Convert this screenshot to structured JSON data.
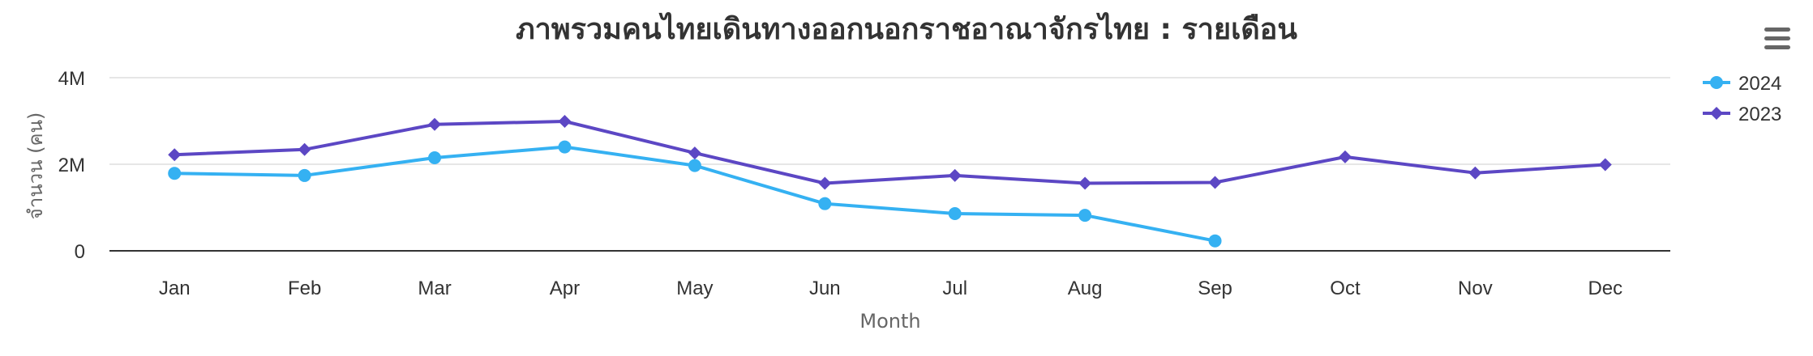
{
  "chart_data": {
    "type": "line",
    "title": "ภาพรวมคนไทยเดินทางออกนอกราชอาณาจักรไทย : รายเดือน",
    "xlabel": "Month",
    "ylabel": "จำนวน (คน)",
    "categories": [
      "Jan",
      "Feb",
      "Mar",
      "Apr",
      "May",
      "Jun",
      "Jul",
      "Aug",
      "Sep",
      "Oct",
      "Nov",
      "Dec"
    ],
    "ylim": [
      0,
      4000000
    ],
    "yticks": [
      0,
      2000000,
      4000000
    ],
    "ytick_labels": [
      "0",
      "2M",
      "4M"
    ],
    "grid": true,
    "legend_position": "top-right",
    "series": [
      {
        "name": "2024",
        "color": "#35b1f2",
        "marker": "circle",
        "values": [
          1790000,
          1740000,
          2150000,
          2400000,
          1970000,
          1090000,
          860000,
          820000,
          230000,
          null,
          null,
          null
        ]
      },
      {
        "name": "2023",
        "color": "#5c47c4",
        "marker": "diamond",
        "values": [
          2220000,
          2340000,
          2920000,
          2990000,
          2260000,
          1560000,
          1740000,
          1560000,
          1580000,
          2170000,
          1800000,
          1990000
        ]
      }
    ]
  },
  "menu": {
    "icon": "hamburger-menu-icon"
  }
}
